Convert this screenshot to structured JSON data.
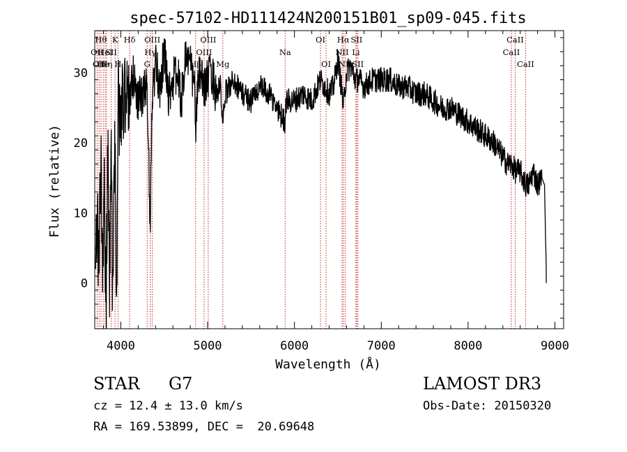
{
  "chart_data": {
    "type": "line",
    "title": "spec-57102-HD111424N200151B01_sp09-045.fits",
    "xlabel": "Wavelength (Å)",
    "ylabel": "Flux (relative)",
    "xlim": [
      3700,
      9100
    ],
    "ylim": [
      -6.5,
      36
    ],
    "xticks": [
      4000,
      5000,
      6000,
      7000,
      8000,
      9000
    ],
    "yticks": [
      0,
      10,
      20,
      30
    ],
    "grid": false,
    "series": [
      {
        "name": "spectrum",
        "x": [
          3710,
          3730,
          3750,
          3770,
          3790,
          3810,
          3830,
          3850,
          3870,
          3890,
          3910,
          3930,
          3950,
          3970,
          4000,
          4030,
          4060,
          4100,
          4150,
          4200,
          4250,
          4300,
          4320,
          4340,
          4360,
          4400,
          4450,
          4500,
          4550,
          4600,
          4650,
          4700,
          4750,
          4800,
          4850,
          4861,
          4900,
          4950,
          5000,
          5050,
          5100,
          5150,
          5175,
          5200,
          5300,
          5400,
          5500,
          5600,
          5700,
          5800,
          5890,
          5900,
          6000,
          6100,
          6200,
          6300,
          6400,
          6450,
          6500,
          6550,
          6563,
          6600,
          6650,
          6700,
          6750,
          6800,
          6900,
          7000,
          7100,
          7200,
          7300,
          7400,
          7500,
          7600,
          7700,
          7800,
          7900,
          8000,
          8100,
          8200,
          8300,
          8400,
          8450,
          8500,
          8542,
          8600,
          8662,
          8700,
          8750,
          8800,
          8850,
          8880,
          8890,
          8900
        ],
        "y": [
          2,
          8,
          -0.5,
          18,
          5,
          12,
          -3,
          18,
          0,
          16,
          -4,
          22,
          -5,
          25,
          24,
          27,
          28,
          26,
          30,
          26,
          27,
          28,
          18,
          8,
          26,
          31,
          28,
          33,
          27,
          29,
          30,
          26,
          33,
          31,
          28,
          22,
          30,
          28,
          29,
          30,
          27,
          28,
          22,
          27,
          29,
          27,
          26,
          28,
          27,
          25,
          23,
          26,
          26,
          27,
          26,
          29,
          27,
          28,
          32,
          27,
          25,
          30,
          31,
          29,
          29,
          28,
          29,
          29,
          29,
          28,
          28,
          27,
          27,
          26,
          25,
          25,
          24,
          23,
          22,
          21,
          20,
          18,
          17,
          17,
          16,
          16,
          14,
          14,
          16,
          14,
          15,
          14,
          8,
          2
        ]
      }
    ],
    "lines": [
      {
        "wl": 3727,
        "label": "OII",
        "row": 2
      },
      {
        "wl": 3750,
        "label": "OII",
        "row": 3
      },
      {
        "wl": 3771,
        "label": "Hθ",
        "row": 1
      },
      {
        "wl": 3798,
        "label": "He",
        "row": 3
      },
      {
        "wl": 3820,
        "label": "HeI",
        "row": 2
      },
      {
        "wl": 3835,
        "label": "Hη",
        "row": 3
      },
      {
        "wl": 3889,
        "label": "SII",
        "row": 2
      },
      {
        "wl": 3934,
        "label": "K",
        "row": 1
      },
      {
        "wl": 3968,
        "label": "H",
        "row": 3
      },
      {
        "wl": 4102,
        "label": "Hδ",
        "row": 1
      },
      {
        "wl": 4304,
        "label": "G",
        "row": 3
      },
      {
        "wl": 4340,
        "label": "Hγ",
        "row": 2
      },
      {
        "wl": 4363,
        "label": "OIII",
        "row": 1
      },
      {
        "wl": 4861,
        "label": "Hβ",
        "row": 3
      },
      {
        "wl": 4959,
        "label": "OIII",
        "row": 2
      },
      {
        "wl": 5007,
        "label": "OIII",
        "row": 1
      },
      {
        "wl": 5175,
        "label": "Mg",
        "row": 3
      },
      {
        "wl": 5893,
        "label": "Na",
        "row": 2
      },
      {
        "wl": 6300,
        "label": "OI",
        "row": 1
      },
      {
        "wl": 6364,
        "label": "OI",
        "row": 3
      },
      {
        "wl": 6548,
        "label": "NII",
        "row": 2
      },
      {
        "wl": 6563,
        "label": "Hα",
        "row": 1
      },
      {
        "wl": 6584,
        "label": "NII",
        "row": 3
      },
      {
        "wl": 6708,
        "label": "Li",
        "row": 2
      },
      {
        "wl": 6716,
        "label": "SII",
        "row": 1
      },
      {
        "wl": 6731,
        "label": "SII",
        "row": 3
      },
      {
        "wl": 8498,
        "label": "CaII",
        "row": 2
      },
      {
        "wl": 8542,
        "label": "CaII",
        "row": 1
      },
      {
        "wl": 8662,
        "label": "CaII",
        "row": 3
      }
    ]
  },
  "info": {
    "object_class": "STAR",
    "subclass": "G7",
    "cz": "cz = 12.4 ± 13.0 km/s",
    "coords": "RA = 169.53899, DEC =  20.69648",
    "survey": "LAMOST DR3",
    "obs_date": "Obs-Date: 20150320"
  },
  "colors": {
    "line_marker": "#c02020",
    "spectrum": "#000000"
  }
}
